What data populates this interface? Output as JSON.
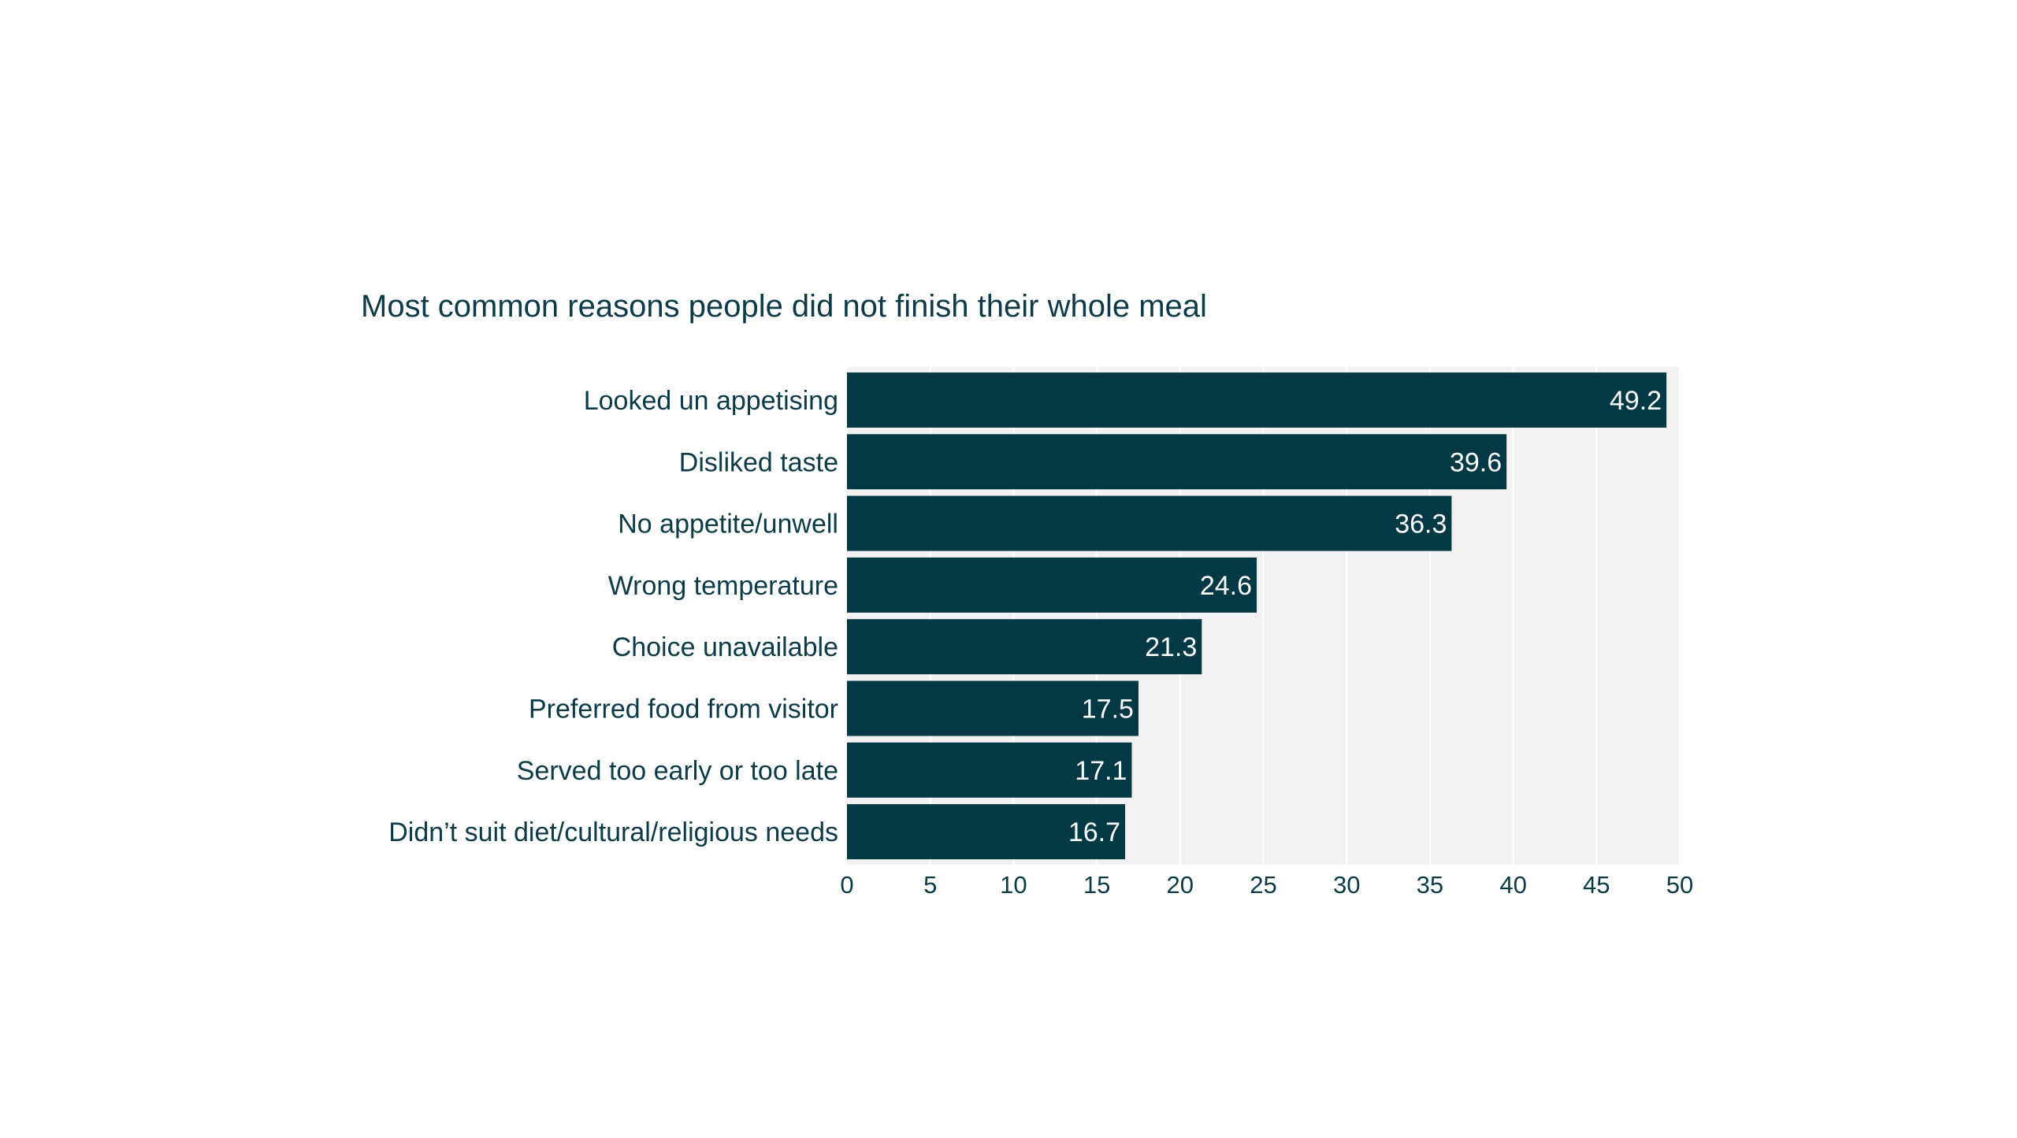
{
  "chart_data": {
    "type": "bar",
    "orientation": "horizontal",
    "title": "Most common reasons people did not finish their whole meal",
    "xlabel": "",
    "ylabel": "",
    "categories": [
      "Looked un appetising",
      "Disliked taste",
      "No appetite/unwell",
      "Wrong temperature",
      "Choice unavailable",
      "Preferred food from visitor",
      "Served too early or too late",
      "Didn’t suit diet/cultural/religious needs"
    ],
    "values": [
      49.2,
      39.6,
      36.3,
      24.6,
      21.3,
      17.5,
      17.1,
      16.7
    ],
    "data_labels": [
      "49.2",
      "39.6",
      "36.3",
      "24.6",
      "21.3",
      "17.5",
      "17.1",
      "16.7"
    ],
    "xlim": [
      0,
      50
    ],
    "xticks": [
      0,
      5,
      10,
      15,
      20,
      25,
      30,
      35,
      40,
      45,
      50
    ],
    "xtick_labels": [
      "0",
      "5",
      "10",
      "15",
      "20",
      "25",
      "30",
      "35",
      "40",
      "45",
      "50"
    ],
    "grid": true,
    "legend": "none",
    "colors": {
      "bar": "#033845",
      "plot_background": "#f2f2f2",
      "gridline": "#ffffff",
      "text": "#0c3a47",
      "data_label": "#ffffff"
    }
  }
}
